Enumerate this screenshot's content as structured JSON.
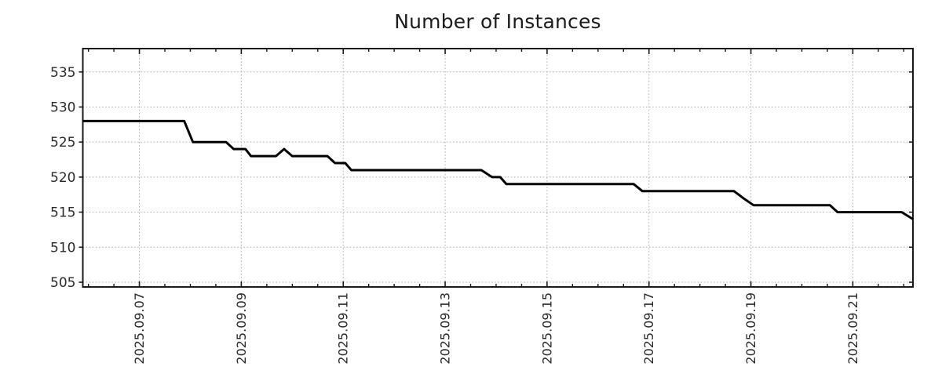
{
  "chart_data": {
    "type": "line",
    "title": "Number of Instances",
    "xlabel": "",
    "ylabel": "",
    "x_unit": "day of September 2025 (fractional)",
    "xlim_days": [
      5.89,
      22.18
    ],
    "ylim": [
      504.33,
      538.33
    ],
    "x_major_tick_days": [
      7,
      9,
      11,
      13,
      15,
      17,
      19,
      21
    ],
    "x_tick_labels": [
      "2025.09.07",
      "2025.09.09",
      "2025.09.11",
      "2025.09.13",
      "2025.09.15",
      "2025.09.17",
      "2025.09.19",
      "2025.09.21"
    ],
    "x_minor_tick_interval_days": 0.5,
    "x_minor_tick_range_days": [
      6.0,
      22.0
    ],
    "y_ticks": [
      505,
      510,
      515,
      520,
      525,
      530,
      535
    ],
    "grid": "dotted gray lines at major ticks, both axes",
    "legend": "none",
    "series": [
      {
        "name": "instances",
        "points": [
          [
            5.89,
            528
          ],
          [
            7.88,
            528
          ],
          [
            8.05,
            525
          ],
          [
            8.7,
            525
          ],
          [
            8.85,
            524
          ],
          [
            9.08,
            524
          ],
          [
            9.19,
            523
          ],
          [
            9.68,
            523
          ],
          [
            9.84,
            524
          ],
          [
            10.0,
            523
          ],
          [
            10.69,
            523
          ],
          [
            10.84,
            522
          ],
          [
            11.04,
            522
          ],
          [
            11.16,
            521
          ],
          [
            13.71,
            521
          ],
          [
            13.92,
            520
          ],
          [
            14.08,
            520
          ],
          [
            14.2,
            519
          ],
          [
            16.7,
            519
          ],
          [
            16.87,
            518
          ],
          [
            18.67,
            518
          ],
          [
            18.85,
            517
          ],
          [
            19.05,
            516
          ],
          [
            20.55,
            516
          ],
          [
            20.7,
            515
          ],
          [
            21.96,
            515
          ],
          [
            22.18,
            514
          ]
        ]
      }
    ]
  },
  "colors": {
    "background": "#ffffff",
    "line": "#000000",
    "grid": "#ababab",
    "border": "#1a1a1a",
    "tick": "#1a1a1a",
    "text": "#2a2a2a"
  },
  "style": {
    "line_width": 3,
    "border_width": 2,
    "major_tick_len": 7,
    "minor_tick_len": 4,
    "y_tick_len": 5
  }
}
